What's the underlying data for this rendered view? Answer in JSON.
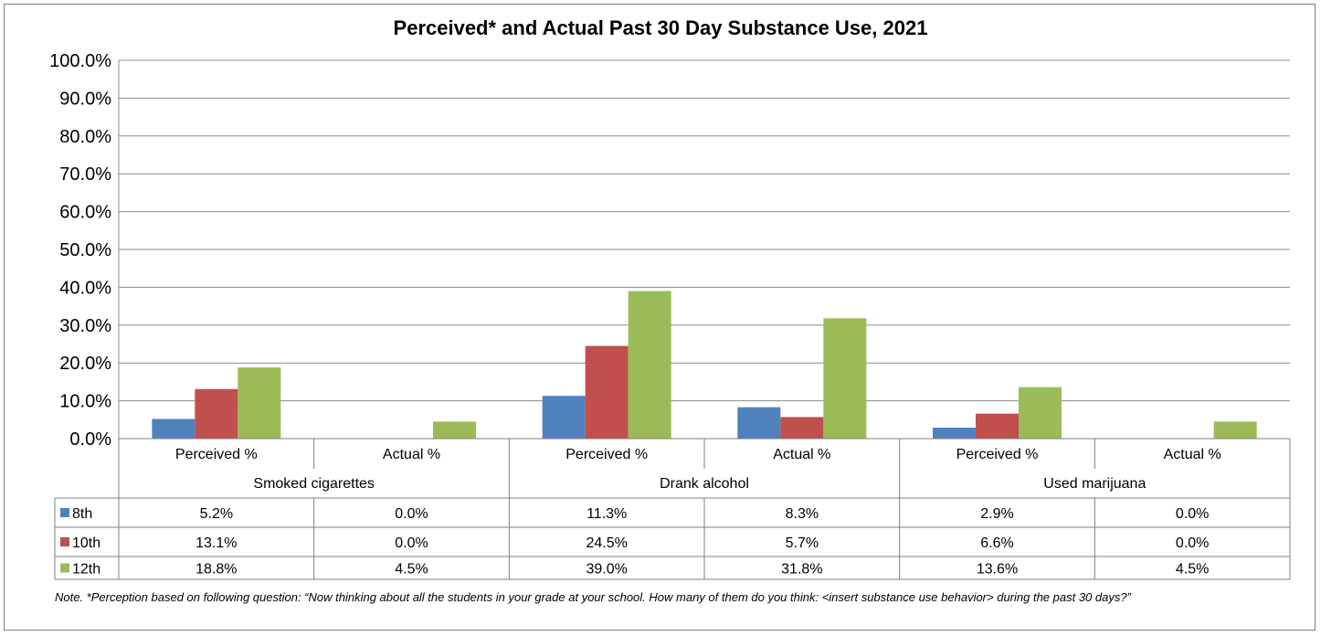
{
  "chart_data": {
    "type": "bar",
    "title": "Perceived* and Actual Past 30 Day Substance Use, 2021",
    "ylim": [
      0,
      100
    ],
    "y_ticks": [
      "0.0%",
      "10.0%",
      "20.0%",
      "30.0%",
      "40.0%",
      "50.0%",
      "60.0%",
      "70.0%",
      "80.0%",
      "90.0%",
      "100.0%"
    ],
    "grid": true,
    "legend": "data-table",
    "groups": [
      "Smoked cigarettes",
      "Drank alcohol",
      "Used marijuana"
    ],
    "categories": [
      "Perceived %",
      "Actual %",
      "Perceived %",
      "Actual %",
      "Perceived %",
      "Actual %"
    ],
    "series": [
      {
        "name": "8th",
        "color": "#4f81bd",
        "values": [
          5.2,
          0.0,
          11.3,
          8.3,
          2.9,
          0.0
        ],
        "labels": [
          "5.2%",
          "0.0%",
          "11.3%",
          "8.3%",
          "2.9%",
          "0.0%"
        ]
      },
      {
        "name": "10th",
        "color": "#c0504d",
        "values": [
          13.1,
          0.0,
          24.5,
          5.7,
          6.6,
          0.0
        ],
        "labels": [
          "13.1%",
          "0.0%",
          "24.5%",
          "5.7%",
          "6.6%",
          "0.0%"
        ]
      },
      {
        "name": "12th",
        "color": "#9bbb59",
        "values": [
          18.8,
          4.5,
          39.0,
          31.8,
          13.6,
          4.5
        ],
        "labels": [
          "18.8%",
          "4.5%",
          "39.0%",
          "31.8%",
          "13.6%",
          "4.5%"
        ]
      }
    ]
  },
  "note": "Note. *Perception based on following question: “Now thinking about all the students in your grade at your school. How many of them do you think: <insert substance use behavior> during the past 30 days?”"
}
